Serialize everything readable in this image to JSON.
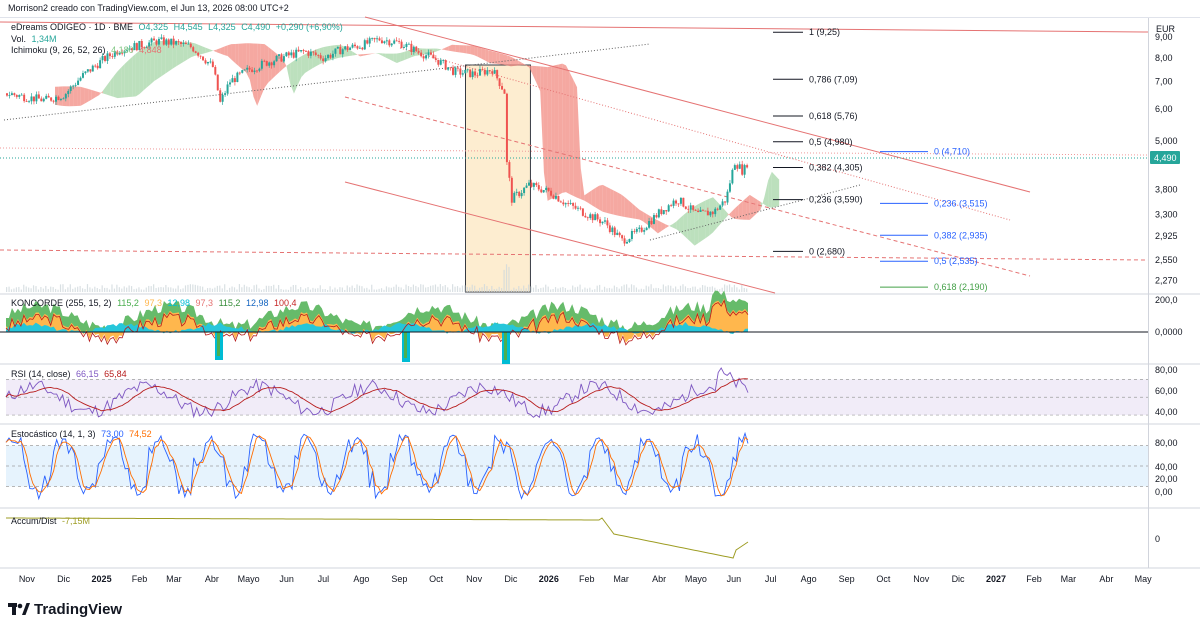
{
  "header": {
    "created_by": "Morrison2 creado con TradingView.com, el Jun 13, 2026 08:00 UTC+2"
  },
  "legend": {
    "symbol": "eDreams ODIGEO · 1D · BME",
    "ohlc": [
      "O4,325",
      "H4,545",
      "L4,325",
      "C4,490",
      "+0,290 (+6,90%)"
    ],
    "volume_label": "Vol.",
    "volume_value": "1,34M",
    "ichimoku_label": "Ichimoku (9, 26, 52, 26)",
    "ichimoku_values": [
      "4,180",
      "4,848"
    ]
  },
  "currency": "EUR",
  "last_price": "4,490",
  "colors": {
    "up": "#26a69a",
    "down": "#ef5350",
    "fib_right": "#2962ff",
    "line_red": "#e57373",
    "kumo_green": "#a5d6a7",
    "kumo_red": "#f28b82"
  },
  "chart_data": [
    {
      "type": "line",
      "title": "eDreams ODIGEO · 1D · BME",
      "price_axis": {
        "scale": "log",
        "ticks": [
          "9,00",
          "8,00",
          "7,00",
          "6,00",
          "5,000",
          "3,800",
          "3,300",
          "2,925",
          "2,550",
          "2,270"
        ],
        "tick_values": [
          9.0,
          8.0,
          7.0,
          6.0,
          5.0,
          3.8,
          3.3,
          2.925,
          2.55,
          2.27
        ]
      },
      "time_axis": [
        "Nov",
        "Dic",
        "2025",
        "Feb",
        "Mar",
        "Abr",
        "Mayo",
        "Jun",
        "Jul",
        "Ago",
        "Sep",
        "Oct",
        "Nov",
        "Dic",
        "2026",
        "Feb",
        "Mar",
        "Abr",
        "Mayo",
        "Jun",
        "Jul",
        "Ago",
        "Sep",
        "Oct",
        "Nov",
        "Dic",
        "2027",
        "Feb",
        "Mar",
        "Abr",
        "May"
      ],
      "price_series": [
        [
          "2024-10-15",
          6.55
        ],
        [
          "2024-11-01",
          6.4
        ],
        [
          "2024-11-15",
          6.3
        ],
        [
          "2024-12-01",
          6.5
        ],
        [
          "2024-12-15",
          7.2
        ],
        [
          "2025-01-01",
          7.9
        ],
        [
          "2025-01-15",
          8.4
        ],
        [
          "2025-02-01",
          8.6
        ],
        [
          "2025-02-15",
          8.8
        ],
        [
          "2025-03-01",
          8.7
        ],
        [
          "2025-03-15",
          8.5
        ],
        [
          "2025-04-01",
          7.6
        ],
        [
          "2025-04-07",
          6.2
        ],
        [
          "2025-04-15",
          7.0
        ],
        [
          "2025-05-01",
          7.5
        ],
        [
          "2025-05-15",
          7.8
        ],
        [
          "2025-06-01",
          8.1
        ],
        [
          "2025-06-15",
          8.3
        ],
        [
          "2025-07-01",
          8.0
        ],
        [
          "2025-07-15",
          8.4
        ],
        [
          "2025-08-01",
          8.6
        ],
        [
          "2025-08-15",
          8.9
        ],
        [
          "2025-09-01",
          8.7
        ],
        [
          "2025-09-15",
          8.3
        ],
        [
          "2025-10-01",
          7.9
        ],
        [
          "2025-10-15",
          7.4
        ],
        [
          "2025-11-01",
          7.3
        ],
        [
          "2025-11-15",
          7.5
        ],
        [
          "2025-11-25",
          6.6
        ],
        [
          "2025-11-27",
          4.4
        ],
        [
          "2025-12-01",
          3.6
        ],
        [
          "2025-12-15",
          3.9
        ],
        [
          "2026-01-01",
          3.75
        ],
        [
          "2026-01-15",
          3.5
        ],
        [
          "2026-02-01",
          3.3
        ],
        [
          "2026-02-15",
          3.15
        ],
        [
          "2026-03-01",
          2.85
        ],
        [
          "2026-03-15",
          3.0
        ],
        [
          "2026-04-01",
          3.35
        ],
        [
          "2026-04-15",
          3.6
        ],
        [
          "2026-05-01",
          3.3
        ],
        [
          "2026-05-15",
          3.35
        ],
        [
          "2026-05-25",
          3.6
        ],
        [
          "2026-06-01",
          4.45
        ],
        [
          "2026-06-08",
          4.2
        ],
        [
          "2026-06-12",
          4.49
        ]
      ],
      "fibonacci_left": [
        {
          "label": "1 (9,25)",
          "value": 9.25
        },
        {
          "label": "0,786 (7,09)",
          "value": 7.09
        },
        {
          "label": "0,618 (5,76)",
          "value": 5.76
        },
        {
          "label": "0,5 (4,980)",
          "value": 4.98
        },
        {
          "label": "0,382 (4,305)",
          "value": 4.305
        },
        {
          "label": "0,236 (3,590)",
          "value": 3.59
        },
        {
          "label": "0 (2,680)",
          "value": 2.68
        }
      ],
      "fibonacci_right": [
        {
          "label": "0 (4,710)",
          "value": 4.71
        },
        {
          "label": "0,236 (3,515)",
          "value": 3.515
        },
        {
          "label": "0,382 (2,935)",
          "value": 2.935
        },
        {
          "label": "0,5 (2,535)",
          "value": 2.535
        },
        {
          "label": "0,618 (2,190)",
          "value": 2.19
        }
      ],
      "highlight_range": [
        "2025-10-25",
        "2025-12-17"
      ]
    },
    {
      "type": "area",
      "indicator": "KONCORDE",
      "label": "KONCORDE (255, 15, 2)",
      "values_text": [
        "115,2",
        "97,3",
        "12,98",
        "97,3",
        "115,2",
        "12,98",
        "100,4"
      ],
      "axis_ticks": [
        "200,0",
        "0,0000"
      ]
    },
    {
      "type": "line",
      "indicator": "RSI",
      "label": "RSI (14, close)",
      "values_text": [
        "66,15",
        "65,84"
      ],
      "axis_ticks": [
        "80,00",
        "60,00",
        "40,00"
      ],
      "bands": [
        70,
        30
      ]
    },
    {
      "type": "line",
      "indicator": "Stochastic",
      "label": "Estocástico (14, 1, 3)",
      "values_text": [
        "73,00",
        "74,52"
      ],
      "axis_ticks": [
        "80,00",
        "40,00",
        "20,00",
        "0,00"
      ],
      "bands": [
        80,
        20
      ]
    },
    {
      "type": "line",
      "indicator": "Accum/Dist",
      "label": "Accum/Dist",
      "values_text": [
        "-7,15M"
      ],
      "axis_ticks": [
        "0"
      ]
    }
  ],
  "brand": {
    "name": "TradingView"
  }
}
